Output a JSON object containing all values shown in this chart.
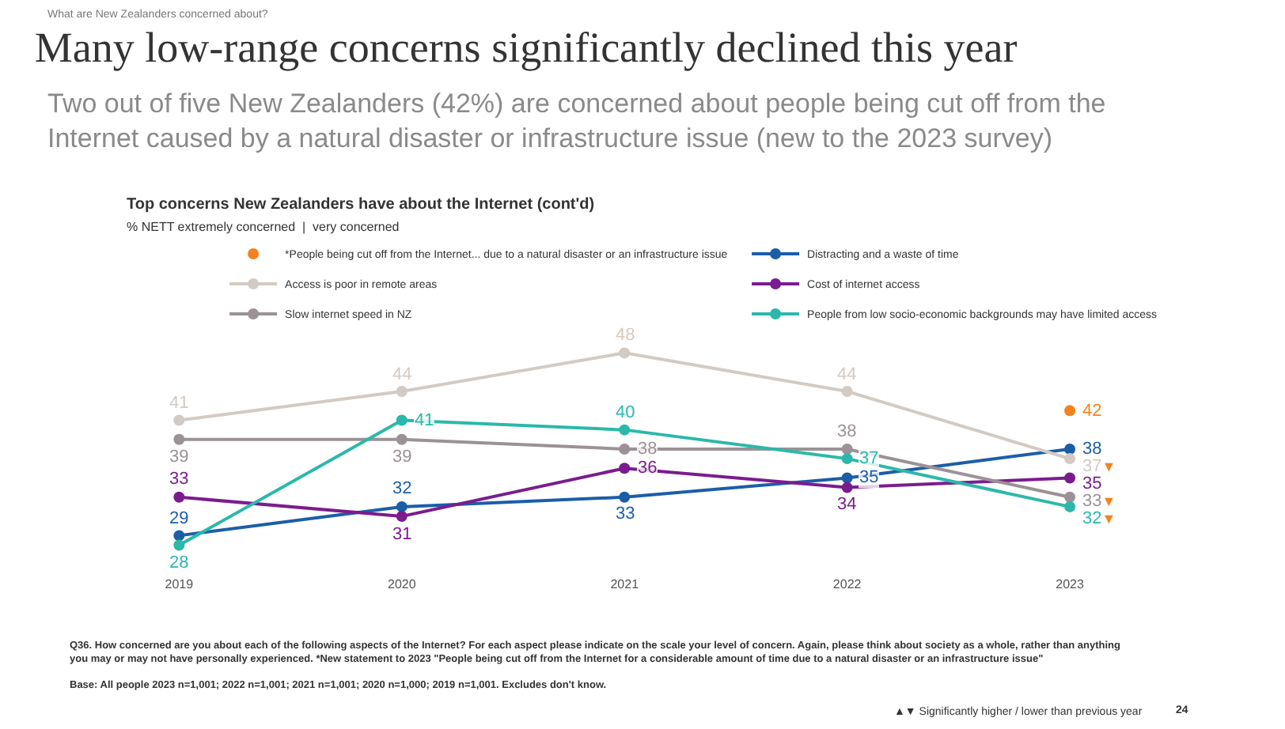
{
  "chart_data": {
    "type": "line",
    "title": "Many low-range concerns significantly declined this year",
    "subtitle": "Two out of five New Zealanders (42%) are concerned about people being cut off from the Internet caused by a natural disaster or infrastructure issue (new to the 2023 survey)",
    "categories": [
      "2019",
      "2020",
      "2021",
      "2022",
      "2023"
    ],
    "series": [
      {
        "name": "*People being cut off from the Internet... due to a natural disaster or an infrastructure issue",
        "color": "#f5821f",
        "type": "scatter",
        "values": [
          null,
          null,
          null,
          null,
          42
        ],
        "value_labels": [
          null,
          null,
          null,
          null,
          "42"
        ]
      },
      {
        "name": "Distracting and a waste of time",
        "color": "#1b5ea8",
        "values": [
          29,
          32,
          33,
          35,
          38
        ],
        "value_labels": [
          "29",
          "32",
          "33",
          "35",
          "38"
        ]
      },
      {
        "name": "Access is poor in remote areas",
        "color": "#d3cac3",
        "values": [
          41,
          44,
          48,
          44,
          37
        ],
        "value_labels": [
          "41",
          "44",
          "48",
          "44",
          "37▼"
        ]
      },
      {
        "name": "Cost of internet access",
        "color": "#7b1c8e",
        "values": [
          33,
          31,
          36,
          34,
          35
        ],
        "value_labels": [
          "33",
          "31",
          "36",
          "34",
          "35"
        ]
      },
      {
        "name": "Slow internet speed in NZ",
        "color": "#9b9196",
        "values": [
          39,
          39,
          38,
          38,
          33
        ],
        "value_labels": [
          "39",
          "39",
          "38",
          "38",
          "33▼"
        ]
      },
      {
        "name": "People from low socio-economic backgrounds may have limited access",
        "color": "#2bb8aa",
        "values": [
          28,
          41,
          40,
          37,
          32
        ],
        "value_labels": [
          "28",
          "41",
          "40",
          "37",
          "32▼"
        ]
      }
    ],
    "tick_labels": "x",
    "legend": "top",
    "marker": "circle",
    "line_style": "solid",
    "annotations": [
      "What are New Zealanders concerned about?",
      "Top concerns New Zealanders have about the Internet (cont'd)",
      "% NETT extremely concerned  |  very concerned",
      "Q36. How concerned are you about each of the following aspects of the Internet? For each aspect please indicate on the scale your level of concern. Again, please think about society as a whole, rather than anything you may or may not have personally experienced. *New statement to 2023 \"People being cut off from the Internet for a considerable amount of time due to a natural disaster or an infrastructure issue\"",
      "Base: All people 2023 n=1,001; 2022 n=1,001; 2021 n=1,001; 2020 n=1,000; 2019 n=1,001. Excludes don't know.",
      "▲▼ Significantly higher / lower than previous year",
      "24"
    ]
  }
}
